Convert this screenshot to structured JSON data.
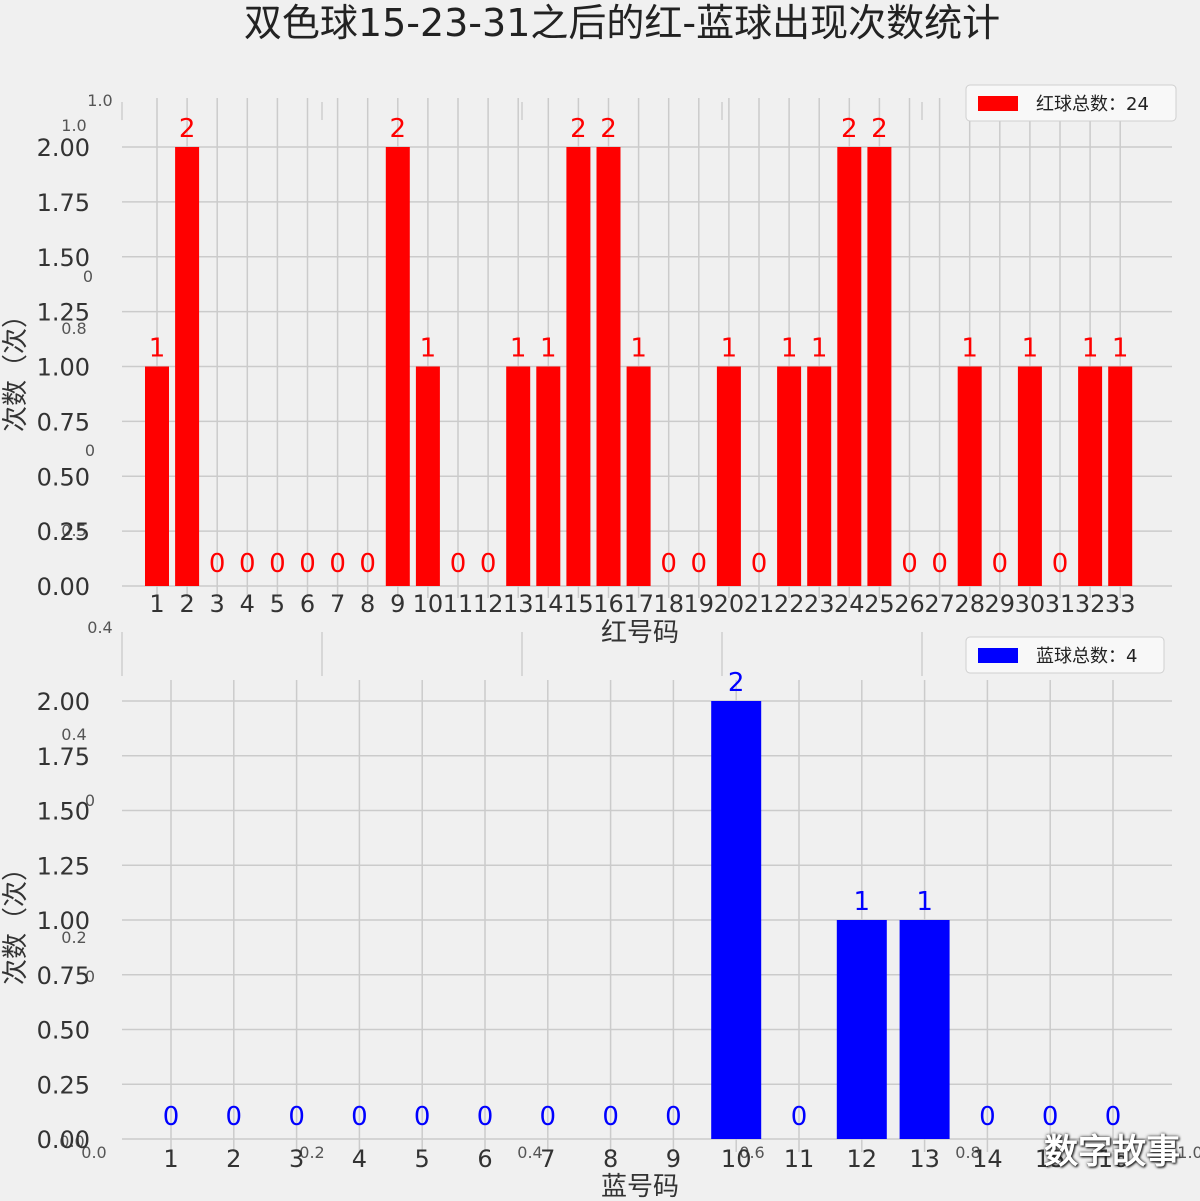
{
  "title": "双色球15-23-31之后的红-蓝球出现次数统计",
  "watermark": "数字故事",
  "colors": {
    "red": "#ff0000",
    "blue": "#0000ff",
    "background": "#f0f0f0",
    "grid": "#cbcbcb"
  },
  "ghost_ticks": {
    "top": [
      "1.0",
      "1.0",
      "0",
      "0.8",
      "0",
      "0.5",
      "0.4"
    ],
    "bottom": [
      "0.4",
      "0",
      "0.2",
      "0",
      "0.0",
      "0.0",
      "0.2",
      "0.4",
      "0.6",
      "0.8",
      "1.0"
    ]
  },
  "chart_data": [
    {
      "type": "bar",
      "xlabel": "红号码",
      "ylabel": "次数（次）",
      "ylim": [
        0,
        2.0
      ],
      "yticks": [
        "0.00",
        "0.25",
        "0.50",
        "0.75",
        "1.00",
        "1.25",
        "1.50",
        "1.75",
        "2.00"
      ],
      "grid": true,
      "legend": {
        "label": "红球总数：24",
        "placement": "top-right"
      },
      "color": "#ff0000",
      "categories": [
        "1",
        "2",
        "3",
        "4",
        "5",
        "6",
        "7",
        "8",
        "9",
        "10",
        "11",
        "12",
        "13",
        "14",
        "15",
        "16",
        "17",
        "18",
        "19",
        "20",
        "21",
        "22",
        "23",
        "24",
        "25",
        "26",
        "27",
        "28",
        "29",
        "30",
        "31",
        "32",
        "33"
      ],
      "values": [
        1,
        2,
        0,
        0,
        0,
        0,
        0,
        0,
        2,
        1,
        0,
        0,
        1,
        1,
        2,
        2,
        1,
        0,
        0,
        1,
        0,
        1,
        1,
        2,
        2,
        0,
        0,
        1,
        0,
        1,
        0,
        1,
        1
      ],
      "value_labels": [
        "1",
        "2",
        "0",
        "0",
        "0",
        "0",
        "0",
        "0",
        "2",
        "1",
        "0",
        "0",
        "1",
        "1",
        "2",
        "2",
        "1",
        "0",
        "0",
        "1",
        "0",
        "1",
        "1",
        "2",
        "2",
        "0",
        "0",
        "1",
        "0",
        "1",
        "0",
        "1",
        "1"
      ]
    },
    {
      "type": "bar",
      "xlabel": "蓝号码",
      "ylabel": "次数（次）",
      "ylim": [
        0,
        2.0
      ],
      "yticks": [
        "0.00",
        "0.25",
        "0.50",
        "0.75",
        "1.00",
        "1.25",
        "1.50",
        "1.75",
        "2.00"
      ],
      "grid": true,
      "legend": {
        "label": "蓝球总数：4",
        "placement": "top-right"
      },
      "color": "#0000ff",
      "categories": [
        "1",
        "2",
        "3",
        "4",
        "5",
        "6",
        "7",
        "8",
        "9",
        "10",
        "11",
        "12",
        "13",
        "14",
        "15",
        "16"
      ],
      "values": [
        0,
        0,
        0,
        0,
        0,
        0,
        0,
        0,
        0,
        2,
        0,
        1,
        1,
        0,
        0,
        0
      ],
      "value_labels": [
        "0",
        "0",
        "0",
        "0",
        "0",
        "0",
        "0",
        "0",
        "0",
        "2",
        "0",
        "1",
        "1",
        "0",
        "0",
        "0"
      ]
    }
  ]
}
